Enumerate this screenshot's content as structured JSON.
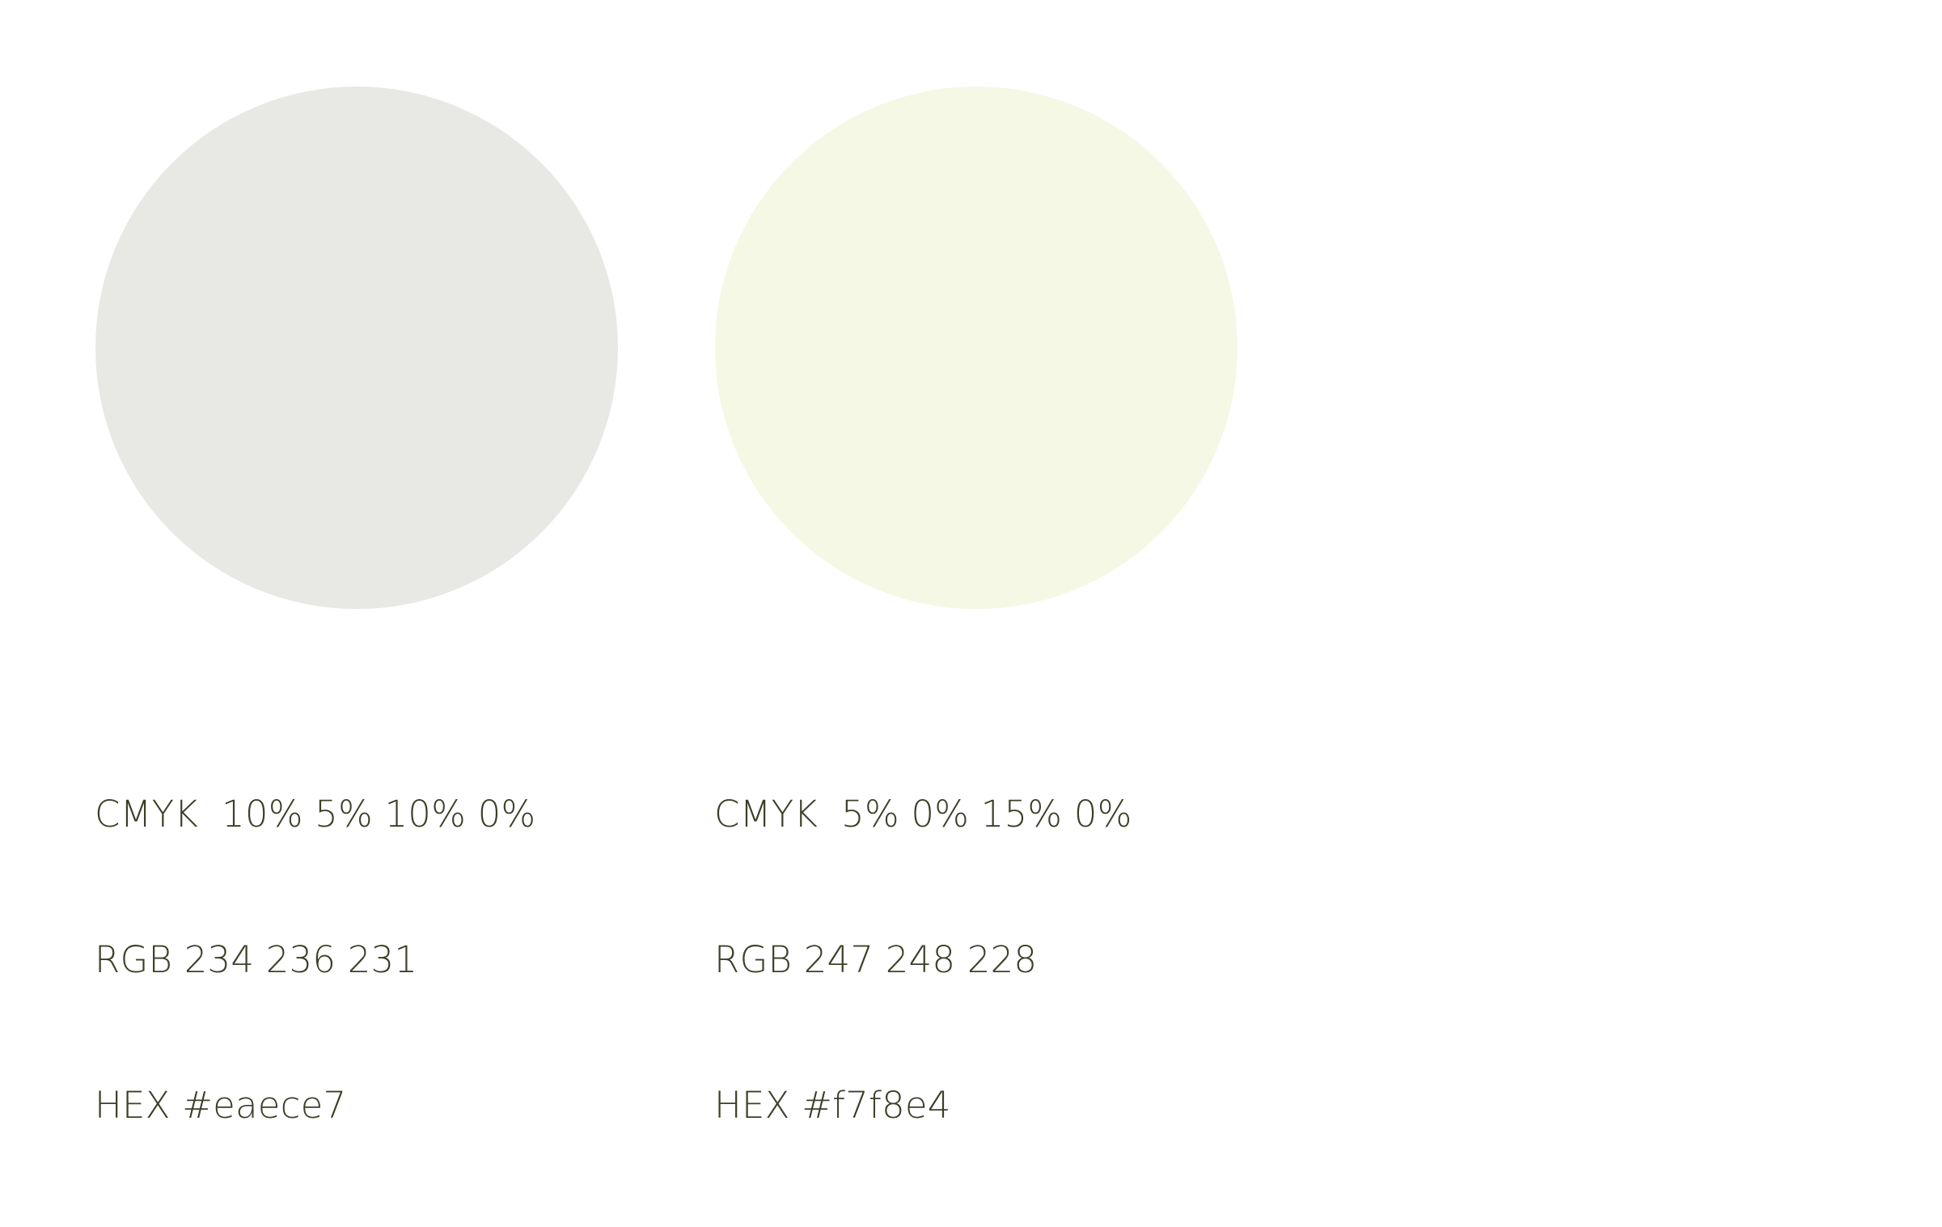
{
  "swatches": [
    {
      "color": "#e8e9e5",
      "cmyk": "CMYK  10% 5% 10% 0%",
      "rgb": "RGB 234 236 231",
      "hex": "HEX #eaece7"
    },
    {
      "color": "#f5f8e4",
      "cmyk": "CMYK  5% 0% 15% 0%",
      "rgb": "RGB 247 248 228",
      "hex": "HEX #f7f8e4"
    }
  ]
}
